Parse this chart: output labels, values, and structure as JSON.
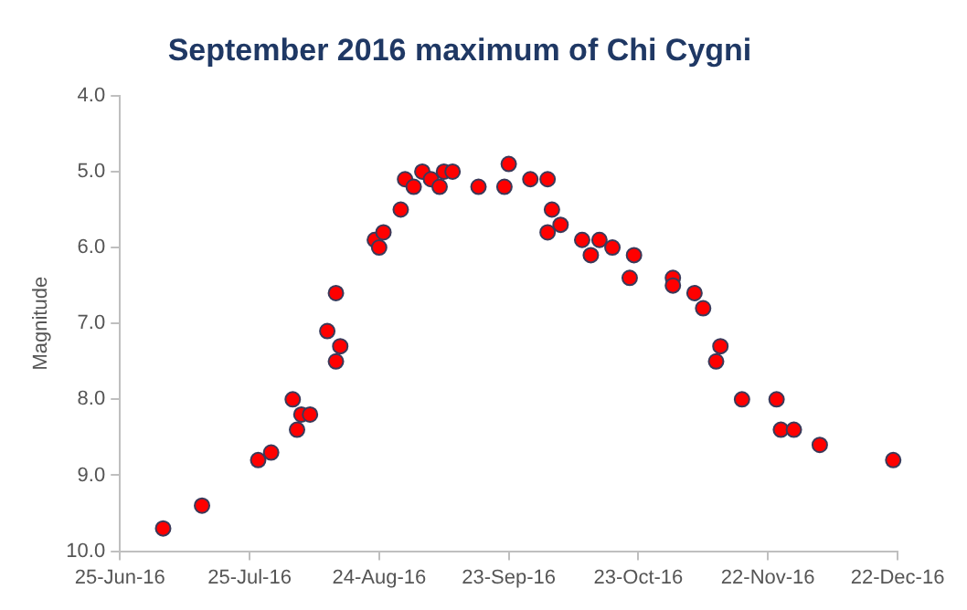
{
  "chart_data": {
    "type": "scatter",
    "title": "September 2016 maximum of Chi Cygni",
    "ylabel": "Magnitude",
    "x": [
      "2016-07-05",
      "2016-07-14",
      "2016-07-27",
      "2016-07-30",
      "2016-08-04",
      "2016-08-05",
      "2016-08-06",
      "2016-08-08",
      "2016-08-12",
      "2016-08-14",
      "2016-08-15",
      "2016-08-14",
      "2016-08-23",
      "2016-08-24",
      "2016-08-25",
      "2016-08-29",
      "2016-08-30",
      "2016-09-01",
      "2016-09-03",
      "2016-09-05",
      "2016-09-07",
      "2016-09-08",
      "2016-09-10",
      "2016-09-16",
      "2016-09-22",
      "2016-09-23",
      "2016-09-28",
      "2016-10-02",
      "2016-10-03",
      "2016-10-02",
      "2016-10-05",
      "2016-10-10",
      "2016-10-12",
      "2016-10-14",
      "2016-10-17",
      "2016-10-21",
      "2016-10-22",
      "2016-10-31",
      "2016-10-31",
      "2016-11-05",
      "2016-11-07",
      "2016-11-10",
      "2016-11-11",
      "2016-11-16",
      "2016-11-24",
      "2016-11-25",
      "2016-11-28",
      "2016-12-04",
      "2016-12-21"
    ],
    "series": [
      {
        "color": "#ff0000",
        "values": [
          9.7,
          9.4,
          8.8,
          8.7,
          8.0,
          8.4,
          8.2,
          8.2,
          7.1,
          7.5,
          7.3,
          6.6,
          5.9,
          6.0,
          5.8,
          5.5,
          5.1,
          5.2,
          5.0,
          5.1,
          5.2,
          5.0,
          5.0,
          5.2,
          5.2,
          4.9,
          5.1,
          5.1,
          5.5,
          5.8,
          5.7,
          5.9,
          6.1,
          5.9,
          6.0,
          6.4,
          6.1,
          6.4,
          6.5,
          6.6,
          6.8,
          7.5,
          7.3,
          8.0,
          8.0,
          8.4,
          8.4,
          8.6,
          8.8
        ]
      }
    ],
    "xlim": [
      "2016-06-25",
      "2016-12-22"
    ],
    "xticks": [
      {
        "value": "2016-06-25",
        "label": "25-Jun-16"
      },
      {
        "value": "2016-07-25",
        "label": "25-Jul-16"
      },
      {
        "value": "2016-08-24",
        "label": "24-Aug-16"
      },
      {
        "value": "2016-09-23",
        "label": "23-Sep-16"
      },
      {
        "value": "2016-10-23",
        "label": "23-Oct-16"
      },
      {
        "value": "2016-11-22",
        "label": "22-Nov-16"
      },
      {
        "value": "2016-12-22",
        "label": "22-Dec-16"
      }
    ],
    "ylim": [
      10,
      4
    ],
    "yticks": [
      {
        "value": 4,
        "label": "4.0"
      },
      {
        "value": 5,
        "label": "5.0"
      },
      {
        "value": 6,
        "label": "6.0"
      },
      {
        "value": 7,
        "label": "7.0"
      },
      {
        "value": 8,
        "label": "8.0"
      },
      {
        "value": 9,
        "label": "9.0"
      },
      {
        "value": 10,
        "label": "10.0"
      }
    ],
    "grid": false,
    "legend": false,
    "marker": "circle"
  }
}
